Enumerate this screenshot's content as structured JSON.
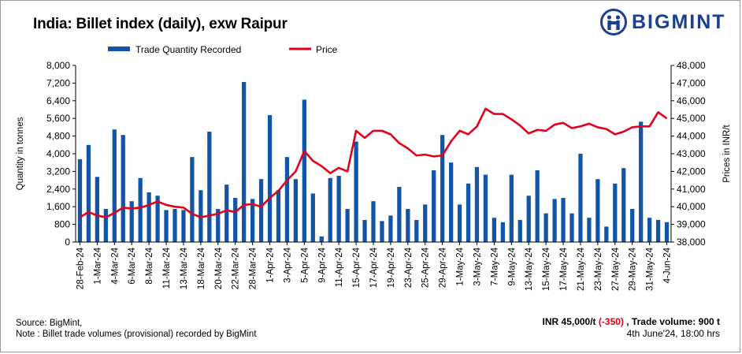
{
  "title": "India: Billet index (daily), exw Raipur",
  "logo": {
    "text": "BIGMINT",
    "icon": "bigmint-logo-icon",
    "color": "#1b3f91"
  },
  "footer": {
    "source": "Source: BigMint,",
    "note": "Note : Billet trade volumes (provisional) recorded by BigMint",
    "price_text": "INR 45,000/t",
    "change_text": "(-350)",
    "volume_label": ", Trade volume:",
    "volume_value": "900 t",
    "timestamp": "4th June'24, 18:00 hrs"
  },
  "chart_data": {
    "type": "bar+line",
    "legend_placement": "top-center",
    "grid": false,
    "left_axis": {
      "label": "Quantity in tonnes",
      "min": 0,
      "max": 8000,
      "step": 800,
      "ticks": [
        "0",
        "800",
        "1,600",
        "2,400",
        "3,200",
        "4,000",
        "4,800",
        "5,600",
        "6,400",
        "7,200",
        "8,000"
      ]
    },
    "right_axis": {
      "label": "Prices in INR/t",
      "min": 38000,
      "max": 48000,
      "step": 1000,
      "ticks": [
        "38,000",
        "39,000",
        "40,000",
        "41,000",
        "42,000",
        "43,000",
        "44,000",
        "45,000",
        "46,000",
        "47,000",
        "48,000"
      ]
    },
    "x_tick_labels": [
      "28-Feb-24",
      "1-Mar-24",
      "4-Mar-24",
      "6-Mar-24",
      "8-Mar-24",
      "11-Mar-24",
      "13-Mar-24",
      "18-Mar-24",
      "20-Mar-24",
      "22-Mar-24",
      "28-Mar-24",
      "1-Apr-24",
      "3-Apr-24",
      "5-Apr-24",
      "9-Apr-24",
      "11-Apr-24",
      "15-Apr-24",
      "17-Apr-24",
      "19-Apr-24",
      "23-Apr-24",
      "25-Apr-24",
      "29-Apr-24",
      "1-May-24",
      "3-May-24",
      "7-May-24",
      "9-May-24",
      "13-May-24",
      "15-May-24",
      "17-May-24",
      "21-May-24",
      "23-May-24",
      "27-May-24",
      "29-May-24",
      "31-May-24",
      "4-Jun-24"
    ],
    "series": [
      {
        "name": "Trade Quantity Recorded",
        "kind": "bar",
        "axis": "left",
        "color": "#1255a6",
        "values": [
          3750,
          4400,
          2950,
          1500,
          5100,
          4850,
          1850,
          2900,
          2250,
          2100,
          1450,
          1500,
          1450,
          3850,
          2350,
          5000,
          1500,
          2600,
          2000,
          7250,
          1950,
          2850,
          5750,
          2350,
          3850,
          2850,
          6450,
          2200,
          250,
          2900,
          3000,
          1500,
          4550,
          1000,
          1850,
          950,
          1200,
          2500,
          1500,
          1000,
          1700,
          3250,
          4850,
          3600,
          1700,
          2650,
          3400,
          3050,
          1100,
          900,
          3050,
          1000,
          2100,
          3250,
          1300,
          1950,
          2000,
          1300,
          4000,
          1100,
          2850,
          700,
          2650,
          3350,
          1500,
          5450,
          1100,
          1000,
          900
        ]
      },
      {
        "name": "Price",
        "kind": "line",
        "axis": "right",
        "color": "#e3001b",
        "values": [
          39400,
          39700,
          39500,
          39400,
          39650,
          39950,
          39900,
          39950,
          40100,
          40300,
          40100,
          40000,
          39950,
          39600,
          39400,
          39500,
          39600,
          39800,
          39700,
          40100,
          40150,
          40000,
          40500,
          40900,
          41500,
          42000,
          43150,
          42600,
          42300,
          41900,
          42200,
          42000,
          44300,
          43900,
          44300,
          44300,
          44100,
          43600,
          43300,
          42900,
          42950,
          42850,
          42900,
          43700,
          44300,
          44100,
          44550,
          45550,
          45250,
          45250,
          44950,
          44600,
          44150,
          44350,
          44300,
          44650,
          44750,
          44450,
          44550,
          44700,
          44500,
          44400,
          44100,
          44250,
          44500,
          44550,
          44550,
          45350,
          45000
        ]
      }
    ]
  }
}
